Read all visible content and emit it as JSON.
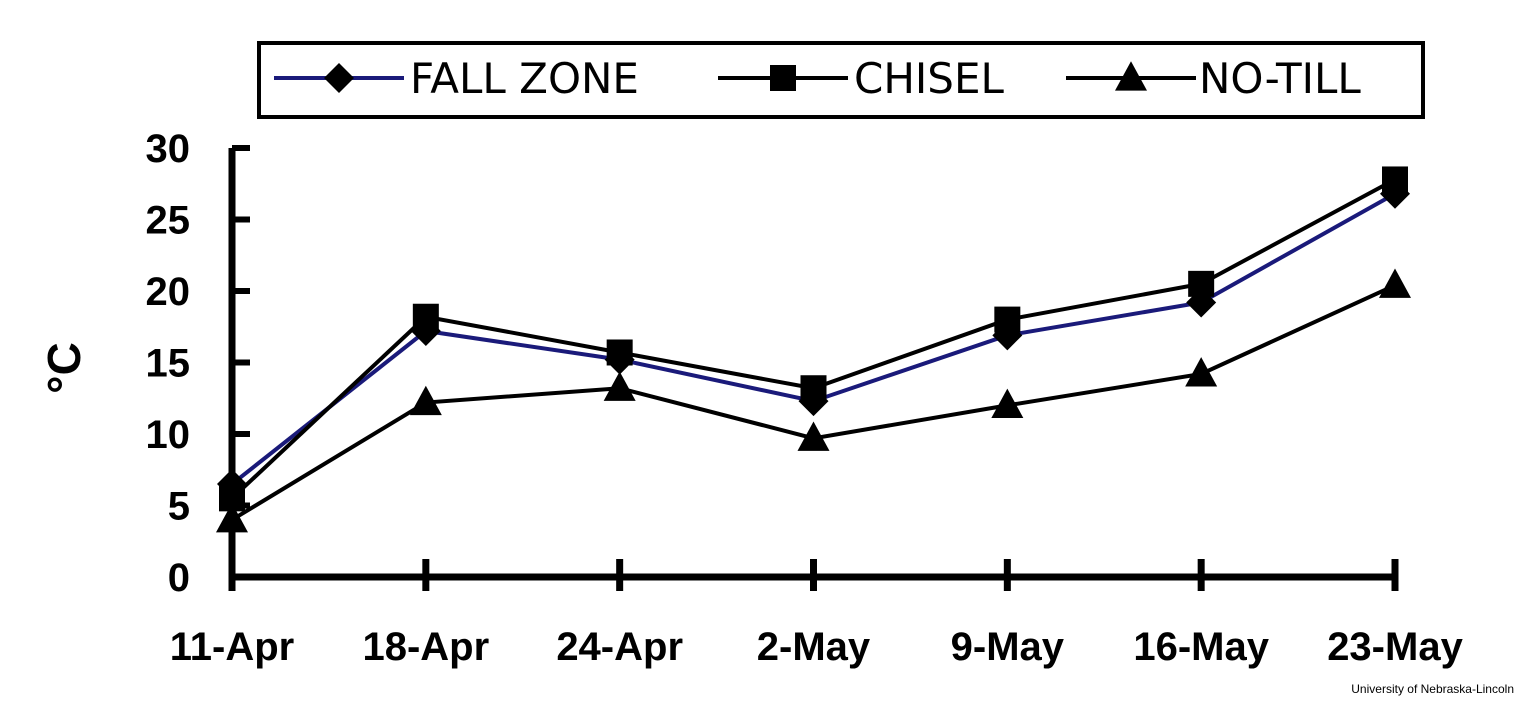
{
  "chart_data": {
    "type": "line",
    "categories": [
      "11-Apr",
      "18-Apr",
      "24-Apr",
      "2-May",
      "9-May",
      "16-May",
      "23-May"
    ],
    "ylabel": "°C",
    "ylim": [
      0,
      30
    ],
    "yticks": [
      0,
      5,
      10,
      15,
      20,
      25,
      30
    ],
    "grid": false,
    "legend_position": "top",
    "series": [
      {
        "name": "FALL ZONE",
        "marker": "diamond",
        "line_color": "#1a1a7a",
        "values": [
          6.5,
          17.2,
          15.2,
          12.3,
          16.9,
          19.2,
          26.8
        ]
      },
      {
        "name": "CHISEL",
        "marker": "square",
        "line_color": "#000000",
        "values": [
          5.5,
          18.2,
          15.7,
          13.2,
          18.0,
          20.5,
          27.8
        ]
      },
      {
        "name": "NO-TILL",
        "marker": "triangle",
        "line_color": "#000000",
        "values": [
          4.0,
          12.2,
          13.2,
          9.7,
          12.0,
          14.2,
          20.4
        ]
      }
    ]
  },
  "credit": "University of Nebraska-Lincoln"
}
